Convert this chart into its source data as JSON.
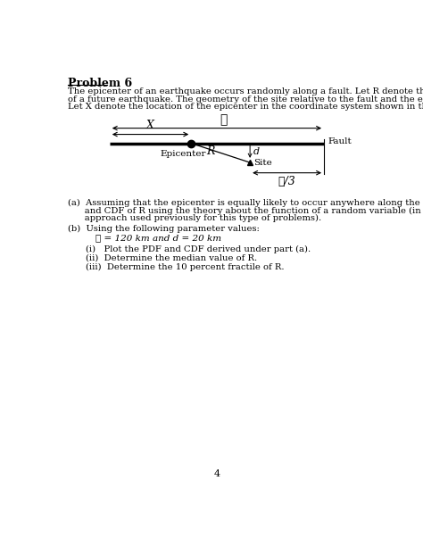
{
  "title": "Problem 6",
  "bg_color": "#ffffff",
  "text_color": "#000000",
  "page_number": "4",
  "intro_line1": "The epicenter of an earthquake occurs randomly along a fault. Let R denote the distance from a site to the epicenter",
  "intro_line2": "of a future earthquake. The geometry of the site relative to the fault and the epicenter is given in the figure below.",
  "intro_line3": "Let X denote the location of the epicenter in the coordinate system shown in the figure.",
  "part_a_line1": "(a)  Assuming that the epicenter is equally likely to occur anywhere along the fault, derive analytically the PDF",
  "part_a_line2": "      and CDF of R using the theory about the function of a random variable (in contrast with the geometric",
  "part_a_line3": "      approach used previously for this type of problems).",
  "part_b_text": "(b)  Using the following parameter values:",
  "param_text": "ℓ = 120 km and d = 20 km",
  "sub_i": "(i)   Plot the PDF and CDF derived under part (a).",
  "sub_ii": "(ii)  Determine the median value of R.",
  "sub_iii": "(iii)  Determine the 10 percent fractile of R.",
  "fig_ell_label": "ℓ",
  "fig_X_label": "X",
  "fig_fault_label": "Fault",
  "fig_epicenter_label": "Epicenter",
  "fig_R_label": "R",
  "fig_d_label": "d",
  "fig_site_label": "Site",
  "fig_ell3_label": "ℓ/3"
}
